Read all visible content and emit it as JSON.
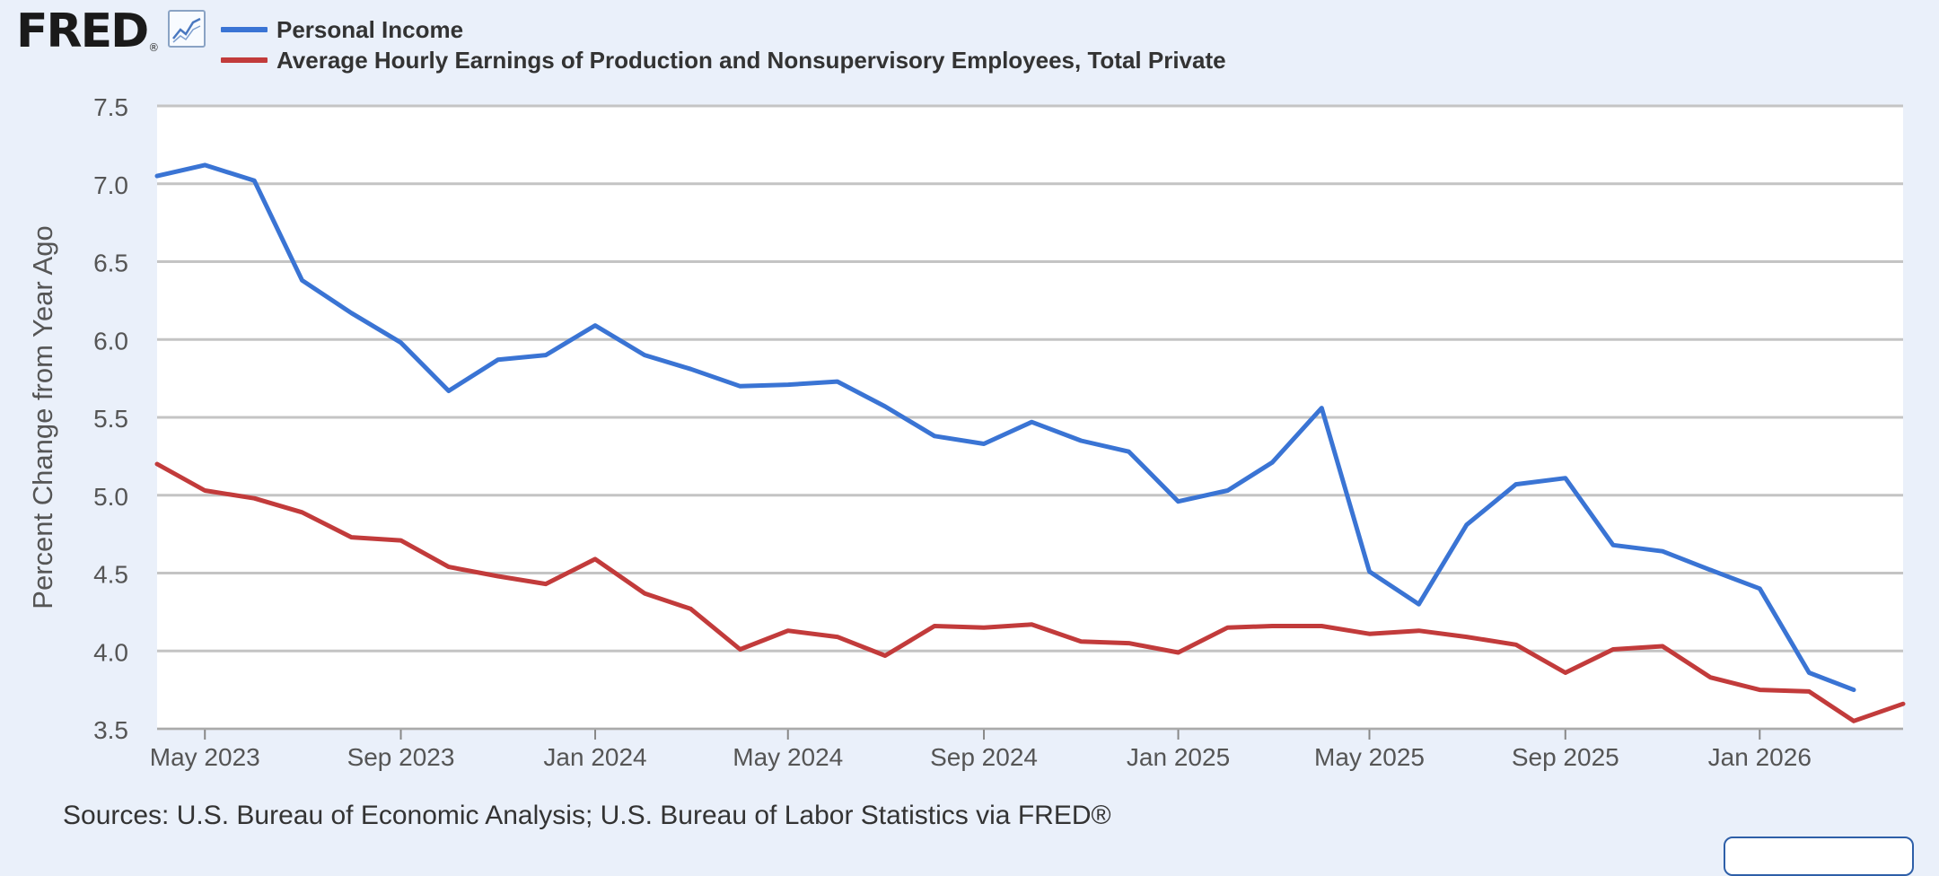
{
  "logo": {
    "text": "FRED",
    "reg": "®",
    "icon": "line-chart-icon"
  },
  "colors": {
    "series1": "#3a74d4",
    "series2": "#c23b3b",
    "grid": "#c4c4c4",
    "plot_bg": "#ffffff",
    "page_bg": "#eaf0fa"
  },
  "sources": "Sources: U.S. Bureau of Economic Analysis; U.S. Bureau of Labor Statistics via FRED®",
  "chart_data": {
    "type": "line",
    "title": "",
    "xlabel": "",
    "ylabel": "Percent Change from Year Ago",
    "ylim": [
      3.5,
      7.5
    ],
    "yticks": [
      "3.5",
      "4.0",
      "4.5",
      "5.0",
      "5.5",
      "6.0",
      "6.5",
      "7.0",
      "7.5"
    ],
    "xlim": [
      "2023-04-01",
      "2026-04-01"
    ],
    "xticks": [
      {
        "date": "2023-05-01",
        "label": "May 2023"
      },
      {
        "date": "2023-09-01",
        "label": "Sep 2023"
      },
      {
        "date": "2024-01-01",
        "label": "Jan 2024"
      },
      {
        "date": "2024-05-01",
        "label": "May 2024"
      },
      {
        "date": "2024-09-01",
        "label": "Sep 2024"
      },
      {
        "date": "2025-01-01",
        "label": "Jan 2025"
      },
      {
        "date": "2025-05-01",
        "label": "May 2025"
      },
      {
        "date": "2025-09-01",
        "label": "Sep 2025"
      },
      {
        "date": "2026-01-01",
        "label": "Jan 2026"
      }
    ],
    "grid": true,
    "legend_position": "top-left",
    "series": [
      {
        "name": "Personal Income",
        "color": "#3a74d4",
        "x": [
          "2023-04-01",
          "2023-05-01",
          "2023-06-01",
          "2023-07-01",
          "2023-08-01",
          "2023-09-01",
          "2023-10-01",
          "2023-11-01",
          "2023-12-01",
          "2024-01-01",
          "2024-02-01",
          "2024-03-01",
          "2024-04-01",
          "2024-05-01",
          "2024-06-01",
          "2024-07-01",
          "2024-08-01",
          "2024-09-01",
          "2024-10-01",
          "2024-11-01",
          "2024-12-01",
          "2025-01-01",
          "2025-02-01",
          "2025-03-01",
          "2025-04-01",
          "2025-05-01",
          "2025-06-01",
          "2025-07-01",
          "2025-08-01",
          "2025-09-01",
          "2025-10-01",
          "2025-11-01",
          "2025-12-01",
          "2026-01-01",
          "2026-02-01",
          "2026-03-01"
        ],
        "values": [
          7.05,
          7.12,
          7.02,
          6.38,
          6.17,
          5.98,
          5.67,
          5.87,
          5.9,
          6.09,
          5.9,
          5.81,
          5.7,
          5.71,
          5.73,
          5.57,
          5.38,
          5.33,
          5.47,
          5.35,
          5.28,
          4.96,
          5.03,
          5.21,
          5.56,
          4.51,
          4.3,
          4.81,
          5.07,
          5.11,
          4.68,
          4.64,
          4.52,
          4.4,
          3.86,
          3.75
        ]
      },
      {
        "name": "Average Hourly Earnings of Production and Nonsupervisory Employees, Total Private",
        "color": "#c23b3b",
        "x": [
          "2023-04-01",
          "2023-05-01",
          "2023-06-01",
          "2023-07-01",
          "2023-08-01",
          "2023-09-01",
          "2023-10-01",
          "2023-11-01",
          "2023-12-01",
          "2024-01-01",
          "2024-02-01",
          "2024-03-01",
          "2024-04-01",
          "2024-05-01",
          "2024-06-01",
          "2024-07-01",
          "2024-08-01",
          "2024-09-01",
          "2024-10-01",
          "2024-11-01",
          "2024-12-01",
          "2025-01-01",
          "2025-02-01",
          "2025-03-01",
          "2025-04-01",
          "2025-05-01",
          "2025-06-01",
          "2025-07-01",
          "2025-08-01",
          "2025-09-01",
          "2025-10-01",
          "2025-11-01",
          "2025-12-01",
          "2026-01-01",
          "2026-02-01",
          "2026-03-01",
          "2026-04-01"
        ],
        "values": [
          5.2,
          5.03,
          4.98,
          4.89,
          4.73,
          4.71,
          4.54,
          4.48,
          4.43,
          4.59,
          4.37,
          4.27,
          4.01,
          4.13,
          4.09,
          3.97,
          4.16,
          4.15,
          4.17,
          4.06,
          4.05,
          3.99,
          4.15,
          4.16,
          4.16,
          4.11,
          4.13,
          4.09,
          4.04,
          3.86,
          4.01,
          4.03,
          3.83,
          3.75,
          3.74,
          3.55,
          3.66
        ]
      }
    ]
  }
}
